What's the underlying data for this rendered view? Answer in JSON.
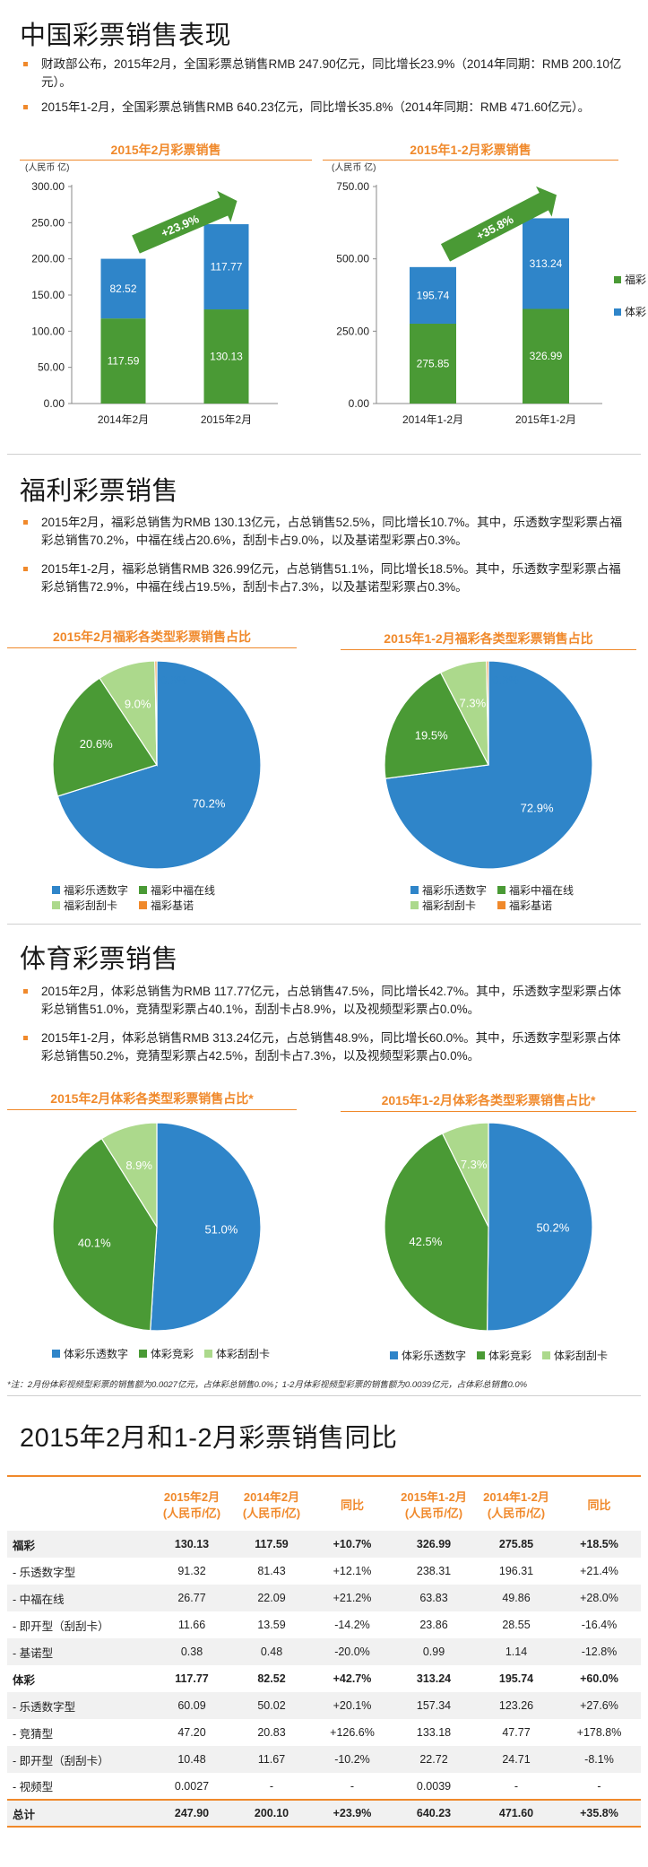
{
  "sections": {
    "s1": {
      "title": "中国彩票销售表现",
      "bullets": [
        "财政部公布，2015年2月，全国彩票总销售RMB 247.90亿元，同比增长23.9%（2014年同期：RMB 200.10亿元）。",
        "2015年1-2月，全国彩票总销售RMB 640.23亿元，同比增长35.8%（2014年同期：RMB 471.60亿元）。"
      ]
    },
    "s2": {
      "title": "福利彩票销售",
      "bullets": [
        "2015年2月，福彩总销售为RMB 130.13亿元，占总销售52.5%，同比增长10.7%。其中，乐透数字型彩票占福彩总销售70.2%，中福在线占20.6%，刮刮卡占9.0%，以及基诺型彩票占0.3%。",
        "2015年1-2月，福彩总销售RMB 326.99亿元，占总销售51.1%，同比增长18.5%。其中，乐透数字型彩票占福彩总销售72.9%，中福在线占19.5%，刮刮卡占7.3%，以及基诺型彩票占0.3%。"
      ]
    },
    "s3": {
      "title": "体育彩票销售",
      "bullets": [
        "2015年2月，体彩总销售为RMB 117.77亿元，占总销售47.5%，同比增长42.7%。其中，乐透数字型彩票占体彩总销售51.0%，竞猜型彩票占40.1%，刮刮卡占8.9%，以及视频型彩票占0.0%。",
        "2015年1-2月，体彩总销售RMB 313.24亿元，占总销售48.9%，同比增长60.0%。其中，乐透数字型彩票占体彩总销售50.2%，竞猜型彩票占42.5%，刮刮卡占7.3%，以及视频型彩票占0.0%。"
      ]
    },
    "s4": {
      "title": "2015年2月和1-2月彩票销售同比"
    }
  },
  "colors": {
    "orange": "#f0892b",
    "blue": "#2f85c9",
    "green": "#4a9a35",
    "light_green": "#acd98c",
    "pie_orange": "#f0892b"
  },
  "chart_data": [
    {
      "type": "bar",
      "stacked": true,
      "title": "2015年2月彩票销售",
      "unit_label": "(人民币 亿)",
      "categories": [
        "2014年2月",
        "2015年2月"
      ],
      "series": [
        {
          "name": "福彩",
          "color": "#4a9a35",
          "values": [
            117.59,
            130.13
          ]
        },
        {
          "name": "体彩",
          "color": "#2f85c9",
          "values": [
            82.52,
            117.77
          ]
        }
      ],
      "ylim": [
        0,
        300
      ],
      "yticks": [
        "0.00",
        "50.00",
        "100.00",
        "150.00",
        "200.00",
        "250.00",
        "300.00"
      ],
      "growth_label": "+23.9%"
    },
    {
      "type": "bar",
      "stacked": true,
      "title": "2015年1-2月彩票销售",
      "unit_label": "(人民币 亿)",
      "categories": [
        "2014年1-2月",
        "2015年1-2月"
      ],
      "series": [
        {
          "name": "福彩",
          "color": "#4a9a35",
          "values": [
            275.85,
            326.99
          ]
        },
        {
          "name": "体彩",
          "color": "#2f85c9",
          "values": [
            195.74,
            313.24
          ]
        }
      ],
      "ylim": [
        0,
        750
      ],
      "yticks": [
        "0.00",
        "250.00",
        "500.00",
        "750.00"
      ],
      "growth_label": "+35.8%",
      "legend": [
        "福彩",
        "体彩"
      ]
    },
    {
      "type": "pie",
      "title": "2015年2月福彩各类型彩票销售占比",
      "slices": [
        {
          "name": "福彩乐透数字",
          "value": 70.2,
          "label": "70.2%",
          "color": "#2f85c9"
        },
        {
          "name": "福彩中福在线",
          "value": 20.6,
          "label": "20.6%",
          "color": "#4a9a35"
        },
        {
          "name": "福彩刮刮卡",
          "value": 9.0,
          "label": "9.0%",
          "color": "#acd98c"
        },
        {
          "name": "福彩基诺",
          "value": 0.3,
          "label": "0.3%",
          "color": "#f0892b"
        }
      ]
    },
    {
      "type": "pie",
      "title": "2015年1-2月福彩各类型彩票销售占比",
      "slices": [
        {
          "name": "福彩乐透数字",
          "value": 72.9,
          "label": "72.9%",
          "color": "#2f85c9"
        },
        {
          "name": "福彩中福在线",
          "value": 19.5,
          "label": "19.5%",
          "color": "#4a9a35"
        },
        {
          "name": "福彩刮刮卡",
          "value": 7.3,
          "label": "7.3%",
          "color": "#acd98c"
        },
        {
          "name": "福彩基诺",
          "value": 0.3,
          "label": "0.3%",
          "color": "#f0892b"
        }
      ]
    },
    {
      "type": "pie",
      "title": "2015年2月体彩各类型彩票销售占比*",
      "slices": [
        {
          "name": "体彩乐透数字",
          "value": 51.0,
          "label": "51.0%",
          "color": "#2f85c9"
        },
        {
          "name": "体彩竞彩",
          "value": 40.1,
          "label": "40.1%",
          "color": "#4a9a35"
        },
        {
          "name": "体彩刮刮卡",
          "value": 8.9,
          "label": "8.9%",
          "color": "#acd98c"
        }
      ]
    },
    {
      "type": "pie",
      "title": "2015年1-2月体彩各类型彩票销售占比*",
      "slices": [
        {
          "name": "体彩乐透数字",
          "value": 50.2,
          "label": "50.2%",
          "color": "#2f85c9"
        },
        {
          "name": "体彩竞彩",
          "value": 42.5,
          "label": "42.5%",
          "color": "#4a9a35"
        },
        {
          "name": "体彩刮刮卡",
          "value": 7.3,
          "label": "7.3%",
          "color": "#acd98c"
        }
      ]
    },
    {
      "type": "table",
      "headers": [
        "",
        "2015年2月\n(人民币/亿)",
        "2014年2月\n(人民币/亿)",
        "同比",
        "2015年1-2月\n(人民币/亿)",
        "2014年1-2月\n(人民币/亿)",
        "同比"
      ],
      "rows": [
        {
          "style": "bold shade",
          "cells": [
            "福彩",
            "130.13",
            "117.59",
            "+10.7%",
            "326.99",
            "275.85",
            "+18.5%"
          ]
        },
        {
          "style": "",
          "cells": [
            "- 乐透数字型",
            "91.32",
            "81.43",
            "+12.1%",
            "238.31",
            "196.31",
            "+21.4%"
          ]
        },
        {
          "style": "shade",
          "cells": [
            "- 中福在线",
            "26.77",
            "22.09",
            "+21.2%",
            "63.83",
            "49.86",
            "+28.0%"
          ]
        },
        {
          "style": "",
          "cells": [
            "- 即开型（刮刮卡）",
            "11.66",
            "13.59",
            "-14.2%",
            "23.86",
            "28.55",
            "-16.4%"
          ]
        },
        {
          "style": "shade",
          "cells": [
            "- 基诺型",
            "0.38",
            "0.48",
            "-20.0%",
            "0.99",
            "1.14",
            "-12.8%"
          ]
        },
        {
          "style": "bold",
          "cells": [
            "体彩",
            "117.77",
            "82.52",
            "+42.7%",
            "313.24",
            "195.74",
            "+60.0%"
          ]
        },
        {
          "style": "shade",
          "cells": [
            "- 乐透数字型",
            "60.09",
            "50.02",
            "+20.1%",
            "157.34",
            "123.26",
            "+27.6%"
          ]
        },
        {
          "style": "",
          "cells": [
            "- 竞猜型",
            "47.20",
            "20.83",
            "+126.6%",
            "133.18",
            "47.77",
            "+178.8%"
          ]
        },
        {
          "style": "shade",
          "cells": [
            "- 即开型（刮刮卡）",
            "10.48",
            "11.67",
            "-10.2%",
            "22.72",
            "24.71",
            "-8.1%"
          ]
        },
        {
          "style": "",
          "cells": [
            "- 视频型",
            "0.0027",
            "-",
            "-",
            "0.0039",
            "-",
            "-"
          ]
        },
        {
          "style": "total",
          "cells": [
            "总计",
            "247.90",
            "200.10",
            "+23.9%",
            "640.23",
            "471.60",
            "+35.8%"
          ]
        }
      ]
    }
  ],
  "footnote": "*注：2月份体彩视频型彩票的销售额为0.0027亿元，占体彩总销售0.0%；1-2月体彩视频型彩票的销售额为0.0039亿元，占体彩总销售0.0%"
}
